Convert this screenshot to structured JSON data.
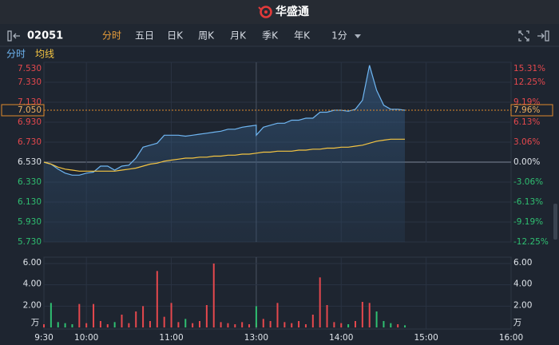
{
  "header": {
    "logo_text": "华盛通"
  },
  "toolbar": {
    "code": "02051",
    "tabs": [
      "分时",
      "五日",
      "日K",
      "周K",
      "月K",
      "季K",
      "年K",
      "1分"
    ],
    "active_tab": 0
  },
  "chart_data": [
    {
      "type": "line",
      "x": [
        "9:30",
        "9:35",
        "9:40",
        "9:45",
        "9:50",
        "9:55",
        "10:00",
        "10:05",
        "10:10",
        "10:15",
        "10:20",
        "10:25",
        "10:30",
        "10:35",
        "10:40",
        "10:45",
        "10:50",
        "10:55",
        "11:00",
        "11:05",
        "11:10",
        "11:15",
        "11:20",
        "11:25",
        "11:30",
        "11:35",
        "11:40",
        "11:45",
        "11:50",
        "11:55",
        "12:00",
        "13:00",
        "13:05",
        "13:10",
        "13:15",
        "13:20",
        "13:25",
        "13:30",
        "13:35",
        "13:40",
        "13:45",
        "13:50",
        "13:55",
        "14:00",
        "14:05",
        "14:10",
        "14:15",
        "14:20",
        "14:25",
        "14:30",
        "14:35",
        "14:40",
        "14:45"
      ],
      "series": [
        {
          "name": "分时",
          "color": "#6fb6f2",
          "values": [
            6.53,
            6.51,
            6.46,
            6.42,
            6.4,
            6.4,
            6.42,
            6.43,
            6.49,
            6.49,
            6.45,
            6.49,
            6.5,
            6.57,
            6.68,
            6.7,
            6.72,
            6.8,
            6.8,
            6.8,
            6.79,
            6.8,
            6.81,
            6.82,
            6.83,
            6.84,
            6.86,
            6.86,
            6.88,
            6.89,
            6.9,
            6.8,
            6.88,
            6.9,
            6.92,
            6.92,
            6.95,
            6.95,
            6.97,
            6.97,
            7.03,
            7.03,
            7.05,
            7.05,
            7.04,
            7.06,
            7.15,
            7.5,
            7.25,
            7.1,
            7.06,
            7.06,
            7.05
          ]
        },
        {
          "name": "均线",
          "color": "#f5c542",
          "values": [
            6.53,
            6.51,
            6.48,
            6.46,
            6.45,
            6.44,
            6.44,
            6.44,
            6.44,
            6.44,
            6.44,
            6.45,
            6.46,
            6.47,
            6.49,
            6.51,
            6.52,
            6.54,
            6.55,
            6.56,
            6.57,
            6.57,
            6.58,
            6.58,
            6.59,
            6.59,
            6.6,
            6.6,
            6.61,
            6.61,
            6.62,
            6.62,
            6.63,
            6.63,
            6.64,
            6.64,
            6.64,
            6.65,
            6.65,
            6.66,
            6.66,
            6.67,
            6.67,
            6.68,
            6.68,
            6.69,
            6.7,
            6.72,
            6.74,
            6.75,
            6.76,
            6.76,
            6.76
          ]
        }
      ],
      "ylim": [
        5.73,
        7.53
      ],
      "yticks": [
        {
          "value": 7.53,
          "label": "7.530"
        },
        {
          "value": 7.33,
          "label": "7.330"
        },
        {
          "value": 7.13,
          "label": "7.130"
        },
        {
          "value": 6.93,
          "label": "6.930"
        },
        {
          "value": 6.73,
          "label": "6.730"
        },
        {
          "value": 6.53,
          "label": "6.530"
        },
        {
          "value": 6.33,
          "label": "6.330"
        },
        {
          "value": 6.13,
          "label": "6.130"
        },
        {
          "value": 5.93,
          "label": "5.930"
        },
        {
          "value": 5.73,
          "label": "5.730"
        }
      ],
      "y2lim": [
        -12.25,
        15.31
      ],
      "y2ticks": [
        {
          "value": 15.31,
          "label": "15.31%"
        },
        {
          "value": 12.25,
          "label": "12.25%"
        },
        {
          "value": 9.19,
          "label": "9.19%"
        },
        {
          "value": 6.13,
          "label": "6.13%"
        },
        {
          "value": 3.06,
          "label": "3.06%"
        },
        {
          "value": 0,
          "label": "0.00%"
        },
        {
          "value": -3.06,
          "label": "-3.06%"
        },
        {
          "value": -6.13,
          "label": "-6.13%"
        },
        {
          "value": -9.19,
          "label": "-9.19%"
        },
        {
          "value": -12.25,
          "label": "-12.25%"
        }
      ],
      "last_price": {
        "value": 7.05,
        "label": "7.050"
      },
      "last_change": {
        "value": 7.96,
        "label": "7.96%"
      },
      "up_color": "#e5484d",
      "down_color": "#2fbf71",
      "grid": true
    },
    {
      "type": "bar",
      "x": [
        "9:30",
        "9:35",
        "9:40",
        "9:45",
        "9:50",
        "9:55",
        "10:00",
        "10:05",
        "10:10",
        "10:15",
        "10:20",
        "10:25",
        "10:30",
        "10:35",
        "10:40",
        "10:45",
        "10:50",
        "10:55",
        "11:00",
        "11:05",
        "11:10",
        "11:15",
        "11:20",
        "11:25",
        "11:30",
        "11:35",
        "11:40",
        "11:45",
        "11:50",
        "11:55",
        "12:00",
        "13:00",
        "13:05",
        "13:10",
        "13:15",
        "13:20",
        "13:25",
        "13:30",
        "13:35",
        "13:40",
        "13:45",
        "13:50",
        "13:55",
        "14:00",
        "14:05",
        "14:10",
        "14:15",
        "14:20",
        "14:25",
        "14:30",
        "14:35",
        "14:40",
        "14:45"
      ],
      "values": [
        0.3,
        2.3,
        0.5,
        0.4,
        0.3,
        2.2,
        0.4,
        2.2,
        0.6,
        0.3,
        0.5,
        1.2,
        0.4,
        1.5,
        2.0,
        0.6,
        5.3,
        1.0,
        2.3,
        0.5,
        0.8,
        0.4,
        0.6,
        2.1,
        6.0,
        0.5,
        0.4,
        0.3,
        0.5,
        0.3,
        0.4,
        2.0,
        0.8,
        0.6,
        2.3,
        0.5,
        0.4,
        0.6,
        0.3,
        1.2,
        4.7,
        2.1,
        0.5,
        0.4,
        0.3,
        0.6,
        2.4,
        2.3,
        1.5,
        0.6,
        0.4,
        0.3,
        0.2
      ],
      "ylim": [
        0,
        6.6
      ],
      "yticks": [
        {
          "value": 6,
          "label": "6.00"
        },
        {
          "value": 4,
          "label": "4.00"
        },
        {
          "value": 2,
          "label": "2.00"
        }
      ],
      "unit": "万",
      "xticks": [
        "9:30",
        "10:00",
        "11:00",
        "13:00",
        "14:00",
        "15:00",
        "16:00"
      ],
      "grid": true
    }
  ]
}
